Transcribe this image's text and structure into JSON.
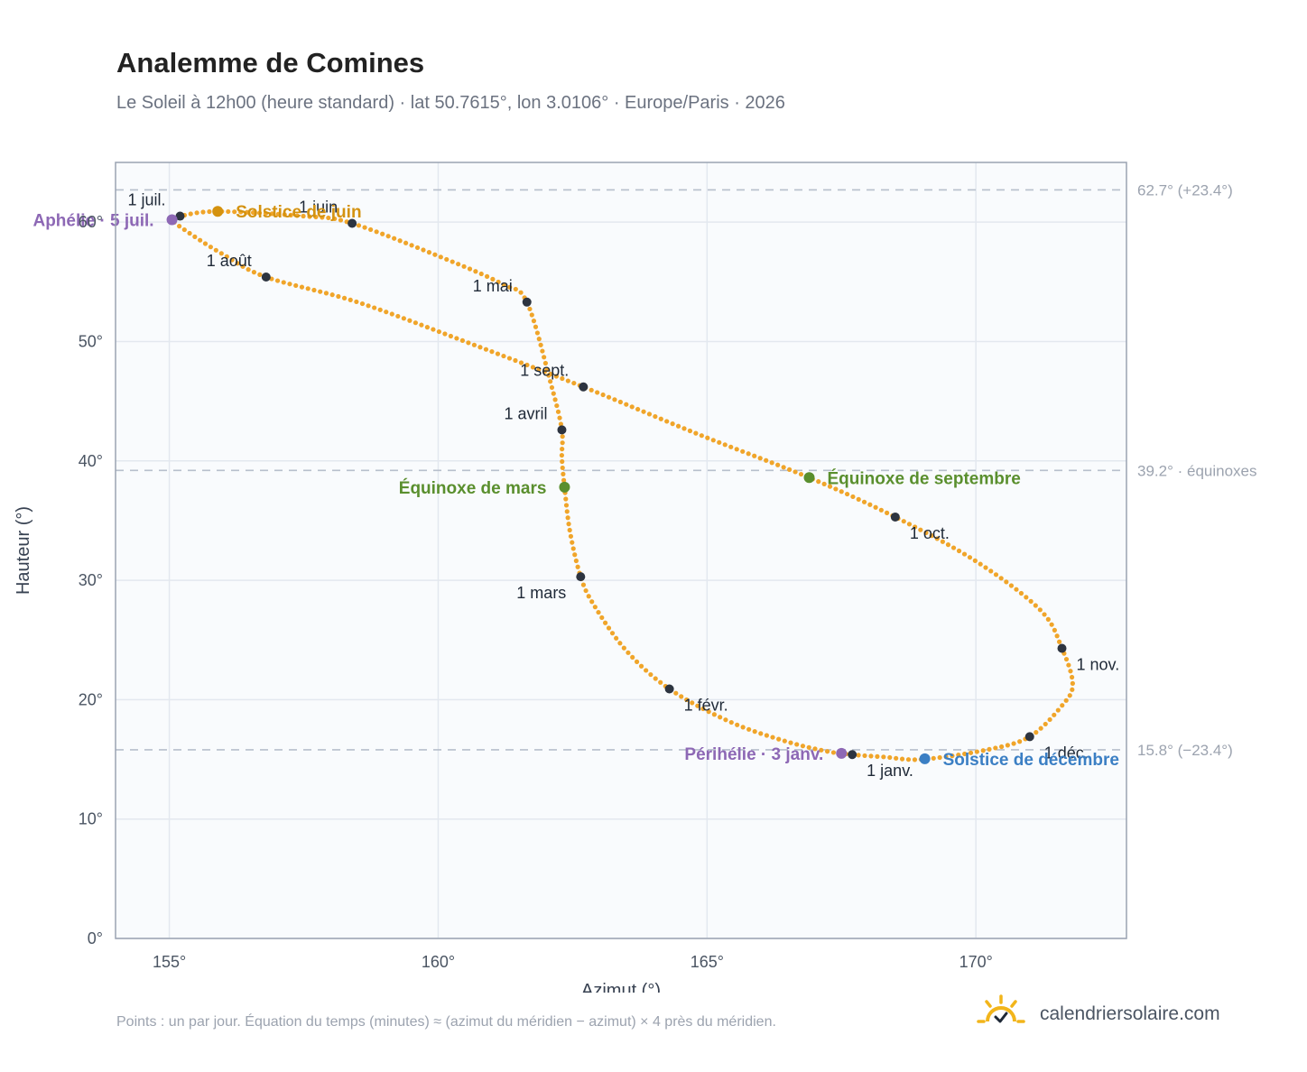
{
  "header": {
    "title": "Analemme de Comines",
    "subtitle": "Le Soleil à 12h00 (heure standard) · lat 50.7615°, lon 3.0106° · Europe/Paris · 2026"
  },
  "footer": {
    "note": "Points : un par jour. Équation du temps (minutes) ≈ (azimut du méridien − azimut) × 4 près du méridien.",
    "brand": "calendriersolaire.com"
  },
  "colors": {
    "curve": "#f0a52a",
    "month_marker": "#2d3440",
    "solstice_june": "#d4920f",
    "solstice_december": "#3b7fc4",
    "equinox": "#5a8f2e",
    "apsis": "#8d68b5",
    "reference_line": "#b7bfcc",
    "plot_background": "#f9fbfd"
  },
  "chart_data": {
    "type": "scatter",
    "xlabel": "Azimut (°)",
    "ylabel": "Hauteur (°)",
    "xlim": [
      154,
      172.8
    ],
    "ylim": [
      0,
      65
    ],
    "x_ticks": [
      {
        "value": 155,
        "label": "155°"
      },
      {
        "value": 160,
        "label": "160°"
      },
      {
        "value": 165,
        "label": "165°"
      },
      {
        "value": 170,
        "label": "170°"
      }
    ],
    "y_ticks": [
      {
        "value": 0,
        "label": "0°"
      },
      {
        "value": 10,
        "label": "10°"
      },
      {
        "value": 20,
        "label": "20°"
      },
      {
        "value": 30,
        "label": "30°"
      },
      {
        "value": 40,
        "label": "40°"
      },
      {
        "value": 50,
        "label": "50°"
      },
      {
        "value": 60,
        "label": "60°"
      }
    ],
    "grid": true,
    "reference_lines": [
      {
        "y": 62.7,
        "label": "62.7° (+23.4°)"
      },
      {
        "y": 39.2,
        "label": "39.2° · équinoxes"
      },
      {
        "y": 15.8,
        "label": "15.8° (−23.4°)"
      }
    ],
    "path_points": [
      [
        167.7,
        15.4
      ],
      [
        167.2,
        15.7
      ],
      [
        166.4,
        16.6
      ],
      [
        165.4,
        18.2
      ],
      [
        164.3,
        20.9
      ],
      [
        163.5,
        24.1
      ],
      [
        162.9,
        27.9
      ],
      [
        162.65,
        30.3
      ],
      [
        162.45,
        34.1
      ],
      [
        162.35,
        37.8
      ],
      [
        162.3,
        40.3
      ],
      [
        162.3,
        42.6
      ],
      [
        162.1,
        46.4
      ],
      [
        161.65,
        53.3
      ],
      [
        161.2,
        54.8
      ],
      [
        160.2,
        56.8
      ],
      [
        158.4,
        59.9
      ],
      [
        157.5,
        60.5
      ],
      [
        155.9,
        60.9
      ],
      [
        155.2,
        60.5
      ],
      [
        155.05,
        60.2
      ],
      [
        155.4,
        59.0
      ],
      [
        156.0,
        57.3
      ],
      [
        156.8,
        55.4
      ],
      [
        158.5,
        53.3
      ],
      [
        160.5,
        50.0
      ],
      [
        162.7,
        46.2
      ],
      [
        164.8,
        42.3
      ],
      [
        166.9,
        38.6
      ],
      [
        168.5,
        35.3
      ],
      [
        170.0,
        31.6
      ],
      [
        171.2,
        27.5
      ],
      [
        171.6,
        24.3
      ],
      [
        171.8,
        21.3
      ],
      [
        171.6,
        19.5
      ],
      [
        171.0,
        16.9
      ],
      [
        170.2,
        15.8
      ],
      [
        169.0,
        15.0
      ],
      [
        168.3,
        15.2
      ],
      [
        167.7,
        15.4
      ]
    ],
    "month_markers": [
      {
        "label": "1 janv.",
        "x": 167.7,
        "y": 15.4,
        "anchor": "below-right"
      },
      {
        "label": "1 févr.",
        "x": 164.3,
        "y": 20.9,
        "anchor": "below-right"
      },
      {
        "label": "1 mars",
        "x": 162.65,
        "y": 30.3,
        "anchor": "below-left"
      },
      {
        "label": "1 avril",
        "x": 162.3,
        "y": 42.6,
        "anchor": "above-left"
      },
      {
        "label": "1 mai",
        "x": 161.65,
        "y": 53.3,
        "anchor": "above-left"
      },
      {
        "label": "1 juin",
        "x": 158.4,
        "y": 59.9,
        "anchor": "above-left"
      },
      {
        "label": "1 juil.",
        "x": 155.2,
        "y": 60.5,
        "anchor": "above-left"
      },
      {
        "label": "1 août",
        "x": 156.8,
        "y": 55.4,
        "anchor": "above-left"
      },
      {
        "label": "1 sept.",
        "x": 162.7,
        "y": 46.2,
        "anchor": "above-left"
      },
      {
        "label": "1 oct.",
        "x": 168.5,
        "y": 35.3,
        "anchor": "below-right"
      },
      {
        "label": "1 nov.",
        "x": 171.6,
        "y": 24.3,
        "anchor": "below-right"
      },
      {
        "label": "1 déc.",
        "x": 171.0,
        "y": 16.9,
        "anchor": "below-right"
      }
    ],
    "events": [
      {
        "label": "Solstice de juin",
        "x": 155.9,
        "y": 60.9,
        "kind": "solstice_june",
        "anchor": "right"
      },
      {
        "label": "Solstice de décembre",
        "x": 169.05,
        "y": 15.05,
        "kind": "solstice_december",
        "anchor": "right"
      },
      {
        "label": "Équinoxe de mars",
        "x": 162.35,
        "y": 37.8,
        "kind": "equinox",
        "anchor": "left"
      },
      {
        "label": "Équinoxe de septembre",
        "x": 166.9,
        "y": 38.6,
        "kind": "equinox",
        "anchor": "right"
      },
      {
        "label": "Aphélie · 5 juil.",
        "x": 155.05,
        "y": 60.2,
        "kind": "apsis",
        "anchor": "left"
      },
      {
        "label": "Périhélie · 3 janv.",
        "x": 167.5,
        "y": 15.5,
        "kind": "apsis",
        "anchor": "left"
      }
    ]
  }
}
